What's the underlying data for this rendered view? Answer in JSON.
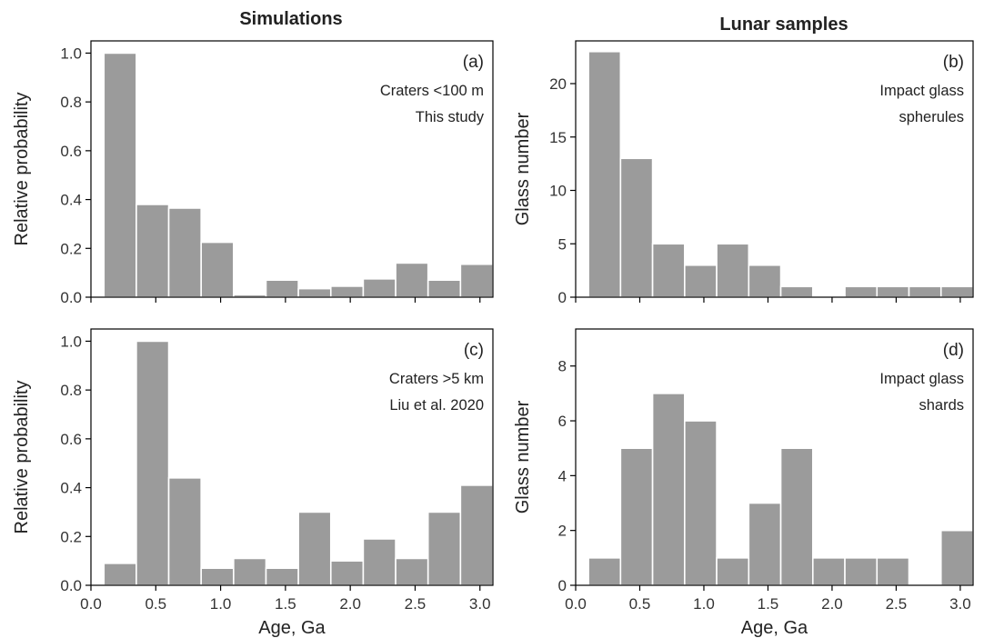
{
  "column_titles": [
    "Simulations",
    "Lunar samples"
  ],
  "chart_data": [
    {
      "type": "bar",
      "panel": "(a)",
      "annotation": [
        "Craters <100 m",
        "This study"
      ],
      "ylabel": "Relative probability",
      "xlabel": "",
      "xlim": [
        0,
        3.1
      ],
      "ylim": [
        0,
        1.05
      ],
      "bin_edges": [
        0.1,
        0.35,
        0.6,
        0.85,
        1.1,
        1.35,
        1.6,
        1.85,
        2.1,
        2.35,
        2.6,
        2.85,
        3.1
      ],
      "values": [
        1.0,
        0.38,
        0.365,
        0.225,
        0.01,
        0.07,
        0.035,
        0.045,
        0.075,
        0.14,
        0.07,
        0.135
      ],
      "xticks": [
        0.0,
        0.5,
        1.0,
        1.5,
        2.0,
        2.5,
        3.0
      ],
      "xtick_labels": [],
      "yticks": [
        0.0,
        0.2,
        0.4,
        0.6,
        0.8,
        1.0
      ],
      "ytick_labels": [
        "0.0",
        "0.2",
        "0.4",
        "0.6",
        "0.8",
        "1.0"
      ],
      "grid": false
    },
    {
      "type": "bar",
      "panel": "(b)",
      "annotation": [
        "Impact glass",
        "spherules"
      ],
      "ylabel": "Glass number",
      "xlabel": "",
      "xlim": [
        0,
        3.1
      ],
      "ylim": [
        0,
        24
      ],
      "bin_edges": [
        0.1,
        0.35,
        0.6,
        0.85,
        1.1,
        1.35,
        1.6,
        1.85,
        2.1,
        2.35,
        2.6,
        2.85,
        3.1
      ],
      "values": [
        23,
        13,
        5,
        3,
        5,
        3,
        1,
        0,
        1,
        1,
        1,
        1
      ],
      "xticks": [
        0.0,
        0.5,
        1.0,
        1.5,
        2.0,
        2.5,
        3.0
      ],
      "xtick_labels": [],
      "yticks": [
        0,
        5,
        10,
        15,
        20
      ],
      "ytick_labels": [
        "0",
        "5",
        "10",
        "15",
        "20"
      ],
      "grid": false
    },
    {
      "type": "bar",
      "panel": "(c)",
      "annotation": [
        "Craters >5 km",
        "Liu et al. 2020"
      ],
      "ylabel": "Relative probability",
      "xlabel": "Age, Ga",
      "xlim": [
        0,
        3.1
      ],
      "ylim": [
        0,
        1.05
      ],
      "bin_edges": [
        0.1,
        0.35,
        0.6,
        0.85,
        1.1,
        1.35,
        1.6,
        1.85,
        2.1,
        2.35,
        2.6,
        2.85,
        3.1
      ],
      "values": [
        0.09,
        1.0,
        0.44,
        0.07,
        0.11,
        0.07,
        0.3,
        0.1,
        0.19,
        0.11,
        0.3,
        0.41
      ],
      "xticks": [
        0.0,
        0.5,
        1.0,
        1.5,
        2.0,
        2.5,
        3.0
      ],
      "xtick_labels": [
        "0.0",
        "0.5",
        "1.0",
        "1.5",
        "2.0",
        "2.5",
        "3.0"
      ],
      "yticks": [
        0.0,
        0.2,
        0.4,
        0.6,
        0.8,
        1.0
      ],
      "ytick_labels": [
        "0.0",
        "0.2",
        "0.4",
        "0.6",
        "0.8",
        "1.0"
      ],
      "grid": false
    },
    {
      "type": "bar",
      "panel": "(d)",
      "annotation": [
        "Impact glass",
        "shards"
      ],
      "ylabel": "Glass number",
      "xlabel": "Age, Ga",
      "xlim": [
        0,
        3.1
      ],
      "ylim": [
        0,
        9.35
      ],
      "bin_edges": [
        0.1,
        0.35,
        0.6,
        0.85,
        1.1,
        1.35,
        1.6,
        1.85,
        2.1,
        2.35,
        2.6,
        2.85,
        3.1
      ],
      "values": [
        1,
        5,
        7,
        6,
        1,
        3,
        5,
        1,
        1,
        1,
        0,
        2
      ],
      "xticks": [
        0.0,
        0.5,
        1.0,
        1.5,
        2.0,
        2.5,
        3.0
      ],
      "xtick_labels": [
        "0.0",
        "0.5",
        "1.0",
        "1.5",
        "2.0",
        "2.5",
        "3.0"
      ],
      "yticks": [
        0,
        2,
        4,
        6,
        8
      ],
      "ytick_labels": [
        "0",
        "2",
        "4",
        "6",
        "8"
      ],
      "grid": false
    }
  ]
}
